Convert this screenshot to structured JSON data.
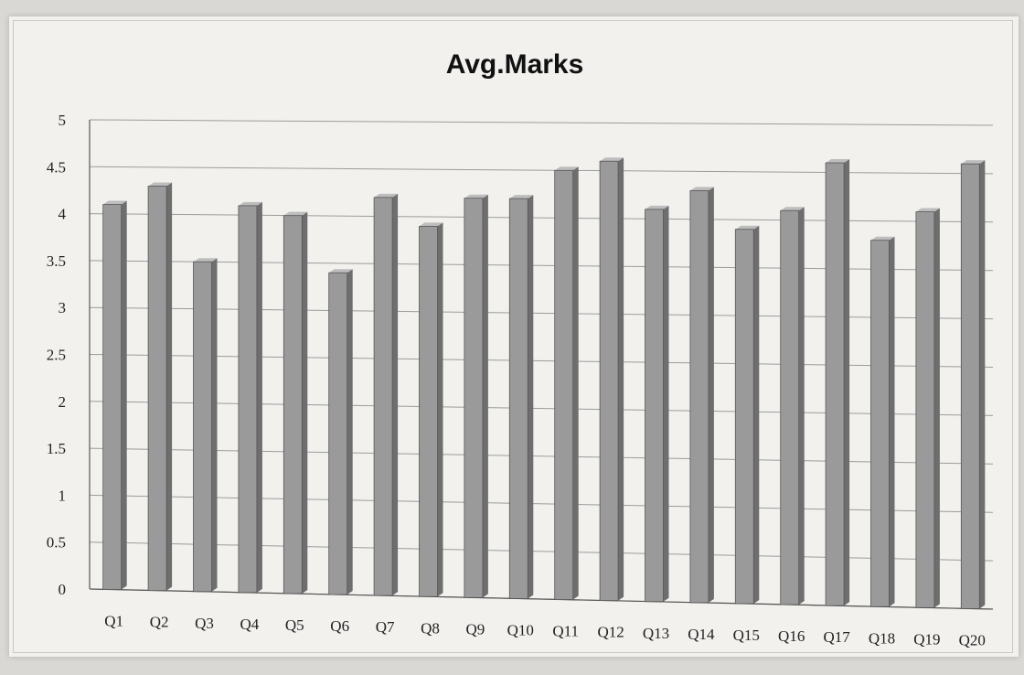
{
  "chart_data": {
    "type": "bar",
    "title": "Avg.Marks",
    "xlabel": "",
    "ylabel": "",
    "categories": [
      "Q1",
      "Q2",
      "Q3",
      "Q4",
      "Q5",
      "Q6",
      "Q7",
      "Q8",
      "Q9",
      "Q10",
      "Q11",
      "Q12",
      "Q13",
      "Q14",
      "Q15",
      "Q16",
      "Q17",
      "Q18",
      "Q19",
      "Q20"
    ],
    "values": [
      4.1,
      4.3,
      3.5,
      4.1,
      4.0,
      3.4,
      4.2,
      3.9,
      4.2,
      4.2,
      4.5,
      4.6,
      4.1,
      4.3,
      3.9,
      4.1,
      4.6,
      3.8,
      4.1,
      4.6
    ],
    "ylim": [
      0,
      5
    ],
    "yticks": [
      "0",
      "0.5",
      "1",
      "1.5",
      "2",
      "2.5",
      "3",
      "3.5",
      "4",
      "4.5",
      "5"
    ],
    "grid": true,
    "legend": "none",
    "bar_color": "#9a9a9a"
  }
}
